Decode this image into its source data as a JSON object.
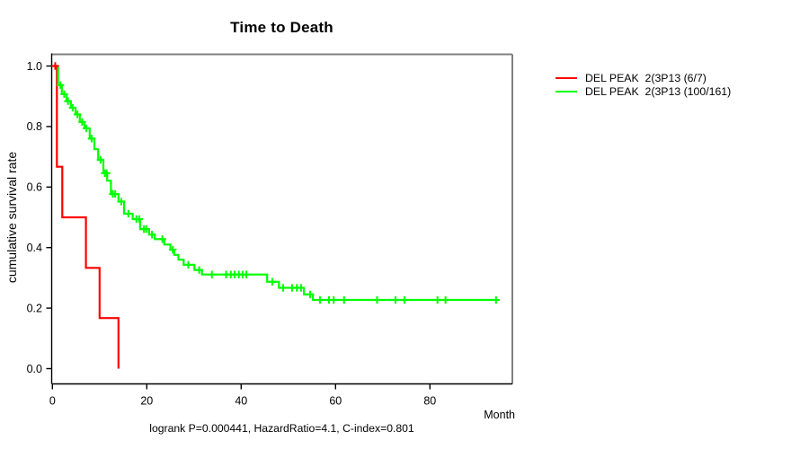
{
  "page": {
    "background": "#ffffff"
  },
  "chart_data": {
    "type": "line",
    "subtype": "kaplan_meier_step",
    "title": "Time to Death",
    "xlabel": "Month",
    "ylabel": "cumulative survival rate",
    "footer": "logrank P=0.000441, HazardRatio=4.1, C-index=0.801",
    "xlim": [
      0,
      97.5
    ],
    "ylim": [
      0,
      1
    ],
    "grid": false,
    "legend_position": "right-of-plot",
    "x_ticks": [
      {
        "v": 0,
        "label": "0"
      },
      {
        "v": 20,
        "label": "20"
      },
      {
        "v": 40,
        "label": "40"
      },
      {
        "v": 60,
        "label": "60"
      },
      {
        "v": 80,
        "label": "80"
      }
    ],
    "y_ticks": [
      {
        "v": 0.0,
        "label": "0.0"
      },
      {
        "v": 0.2,
        "label": "0.2"
      },
      {
        "v": 0.4,
        "label": "0.4"
      },
      {
        "v": 0.6,
        "label": "0.6"
      },
      {
        "v": 0.8,
        "label": "0.8"
      },
      {
        "v": 1.0,
        "label": "1.0"
      }
    ],
    "series": [
      {
        "name": "DEL PEAK  2(3P13 (6/7)",
        "color": "#ff0000",
        "steps": [
          [
            0,
            1.0
          ],
          [
            0.95,
            0.667
          ],
          [
            2.1,
            0.5
          ],
          [
            7.1,
            0.333
          ],
          [
            10.0,
            0.167
          ],
          [
            14.0,
            0.0
          ]
        ],
        "end_month": 14.0,
        "censors": [
          [
            0.6,
            1.0
          ]
        ]
      },
      {
        "name": "DEL PEAK  2(3P13 (100/161)",
        "color": "#00ff00",
        "steps": [
          [
            0,
            1.0
          ],
          [
            1.2,
            0.937
          ],
          [
            2.0,
            0.907
          ],
          [
            3.0,
            0.884
          ],
          [
            3.9,
            0.862
          ],
          [
            4.9,
            0.84
          ],
          [
            5.8,
            0.815
          ],
          [
            6.8,
            0.794
          ],
          [
            7.9,
            0.76
          ],
          [
            8.9,
            0.725
          ],
          [
            9.7,
            0.69
          ],
          [
            10.8,
            0.646
          ],
          [
            11.6,
            0.621
          ],
          [
            12.4,
            0.577
          ],
          [
            14.0,
            0.552
          ],
          [
            15.2,
            0.512
          ],
          [
            17.0,
            0.494
          ],
          [
            18.6,
            0.461
          ],
          [
            20.5,
            0.443
          ],
          [
            21.7,
            0.428
          ],
          [
            23.7,
            0.41
          ],
          [
            25.0,
            0.393
          ],
          [
            25.8,
            0.376
          ],
          [
            26.7,
            0.36
          ],
          [
            27.8,
            0.343
          ],
          [
            30.1,
            0.326
          ],
          [
            31.7,
            0.311
          ],
          [
            45.5,
            0.287
          ],
          [
            48.0,
            0.267
          ],
          [
            53.3,
            0.245
          ],
          [
            55.2,
            0.227
          ]
        ],
        "end_month": 94.0,
        "censors": [
          [
            1.7,
            0.937
          ],
          [
            2.5,
            0.907
          ],
          [
            3.3,
            0.884
          ],
          [
            4.3,
            0.862
          ],
          [
            5.3,
            0.84
          ],
          [
            6.3,
            0.815
          ],
          [
            7.2,
            0.794
          ],
          [
            8.3,
            0.76
          ],
          [
            10.2,
            0.69
          ],
          [
            11.1,
            0.646
          ],
          [
            11.5,
            0.646
          ],
          [
            12.8,
            0.577
          ],
          [
            13.3,
            0.577
          ],
          [
            14.6,
            0.552
          ],
          [
            16.1,
            0.512
          ],
          [
            17.8,
            0.494
          ],
          [
            18.4,
            0.494
          ],
          [
            19.4,
            0.461
          ],
          [
            19.9,
            0.461
          ],
          [
            21.1,
            0.443
          ],
          [
            23.3,
            0.428
          ],
          [
            25.5,
            0.393
          ],
          [
            28.8,
            0.343
          ],
          [
            31.1,
            0.326
          ],
          [
            33.8,
            0.311
          ],
          [
            36.8,
            0.311
          ],
          [
            37.8,
            0.311
          ],
          [
            38.6,
            0.311
          ],
          [
            39.5,
            0.311
          ],
          [
            40.3,
            0.311
          ],
          [
            41.1,
            0.311
          ],
          [
            46.6,
            0.287
          ],
          [
            48.9,
            0.267
          ],
          [
            50.8,
            0.267
          ],
          [
            51.8,
            0.267
          ],
          [
            52.7,
            0.267
          ],
          [
            54.6,
            0.245
          ],
          [
            56.7,
            0.227
          ],
          [
            58.6,
            0.227
          ],
          [
            59.6,
            0.227
          ],
          [
            61.8,
            0.227
          ],
          [
            68.8,
            0.227
          ],
          [
            72.7,
            0.227
          ],
          [
            74.6,
            0.227
          ],
          [
            81.6,
            0.227
          ],
          [
            83.3,
            0.227
          ],
          [
            94.0,
            0.227
          ]
        ]
      }
    ],
    "colors": {
      "axis": "#000000",
      "box": "#808080",
      "background": "#ffffff"
    }
  }
}
